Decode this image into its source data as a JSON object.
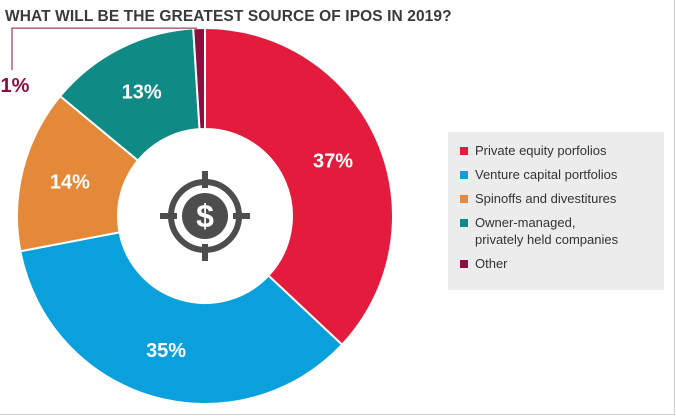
{
  "title": "WHAT WILL BE THE GREATEST SOURCE OF IPOS IN 2019?",
  "icon": "dollar-target-icon",
  "colors": {
    "private_equity": "#e31b3d",
    "venture_capital": "#0aa0dc",
    "spinoffs": "#e4893a",
    "owner_managed": "#0f8a84",
    "other": "#8a0f3f",
    "icon": "#4d4d4d",
    "legend_bg": "#ececec"
  },
  "chart_data": {
    "type": "pie",
    "title": "WHAT WILL BE THE GREATEST SOURCE OF IPOS IN 2019?",
    "legend_position": "right",
    "donut": true,
    "slices": [
      {
        "name": "Private equity porfolios",
        "value": 37,
        "label": "37%",
        "color": "#e31b3d"
      },
      {
        "name": "Venture capital portfolios",
        "value": 35,
        "label": "35%",
        "color": "#0aa0dc"
      },
      {
        "name": "Spinoffs and divestitures",
        "value": 14,
        "label": "14%",
        "color": "#e4893a"
      },
      {
        "name": "Owner-managed,\nprivately held companies",
        "value": 13,
        "label": "13%",
        "color": "#0f8a84"
      },
      {
        "name": "Other",
        "value": 1,
        "label": "1%",
        "color": "#8a0f3f"
      }
    ]
  }
}
